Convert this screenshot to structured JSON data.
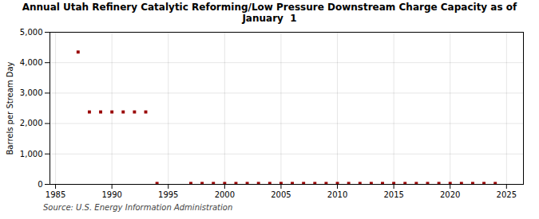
{
  "chart_data": {
    "type": "scatter",
    "title": "Annual Utah Refinery Catalytic Reforming/Low Pressure Downstream Charge Capacity as of\nJanuary  1",
    "ylabel": "Barrels per Stream Day",
    "annotations": [
      "Source: U.S. Energy Information Administration"
    ],
    "color": "#990000",
    "marker": "square",
    "grid": true,
    "x": [
      1987,
      1988,
      1989,
      1990,
      1991,
      1992,
      1993,
      1994,
      1997,
      1998,
      1999,
      2000,
      2001,
      2002,
      2003,
      2004,
      2005,
      2006,
      2007,
      2008,
      2009,
      2010,
      2011,
      2012,
      2013,
      2014,
      2015,
      2016,
      2017,
      2018,
      2019,
      2020,
      2021,
      2022,
      2023,
      2024
    ],
    "values": [
      4350,
      2380,
      2380,
      2380,
      2380,
      2380,
      2380,
      30,
      30,
      30,
      30,
      30,
      30,
      30,
      30,
      30,
      30,
      30,
      30,
      30,
      30,
      30,
      30,
      30,
      30,
      30,
      30,
      30,
      30,
      30,
      30,
      30,
      30,
      30,
      30,
      30
    ],
    "xlim": [
      1984.5,
      2026.5
    ],
    "xticks": [
      1985,
      1990,
      1995,
      2000,
      2005,
      2010,
      2015,
      2020,
      2025
    ],
    "ylim": [
      0,
      5000
    ],
    "yticks": [
      0,
      {
        "value": 1000,
        "label": "1,000"
      },
      {
        "value": 2000,
        "label": "2,000"
      },
      {
        "value": 3000,
        "label": "3,000"
      },
      {
        "value": 4000,
        "label": "4,000"
      },
      {
        "value": 5000,
        "label": "5,000"
      }
    ]
  }
}
